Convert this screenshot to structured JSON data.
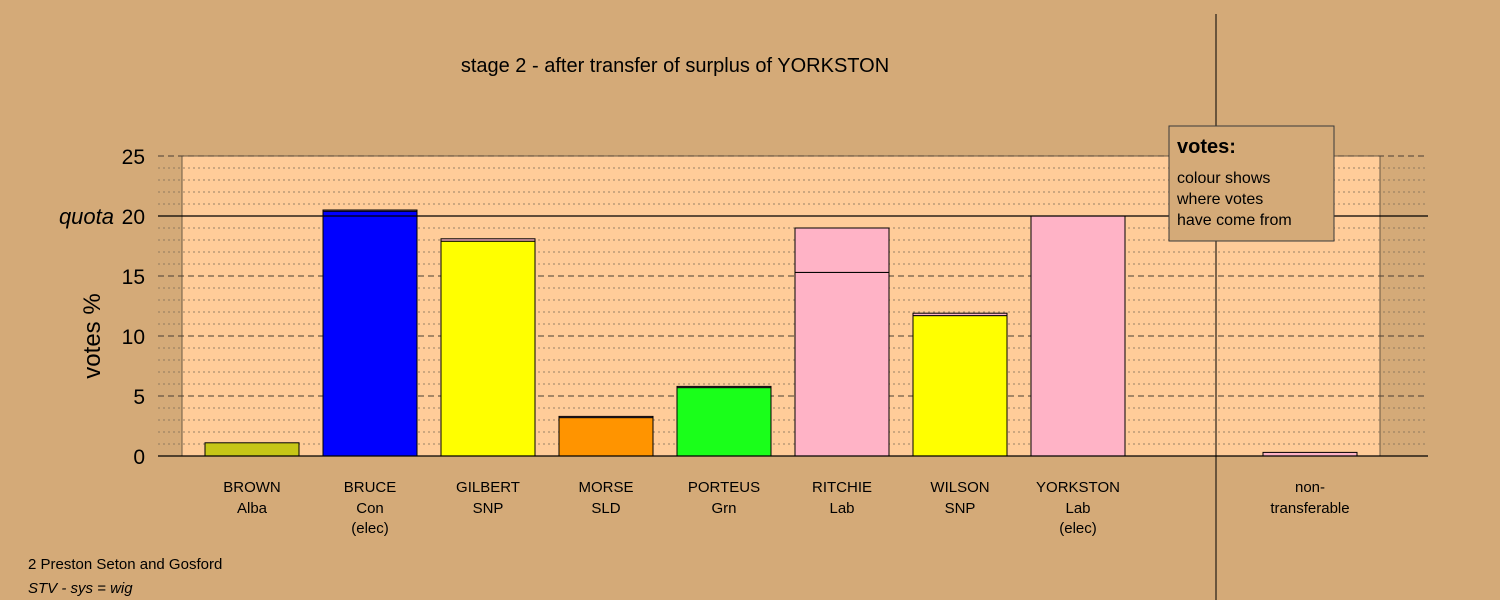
{
  "chart_data": {
    "type": "bar",
    "title": "stage 2 - after transfer of surplus of YORKSTON",
    "ylabel": "votes %",
    "ylim": [
      0,
      25
    ],
    "yticks": [
      0,
      5,
      10,
      15,
      20,
      25
    ],
    "quota": {
      "value": 20,
      "label": "quota"
    },
    "grid": true,
    "categories": [
      {
        "name": "BROWN",
        "party": "Alba",
        "note": ""
      },
      {
        "name": "BRUCE",
        "party": "Con",
        "note": "(elec)"
      },
      {
        "name": "GILBERT",
        "party": "SNP",
        "note": ""
      },
      {
        "name": "MORSE",
        "party": "SLD",
        "note": ""
      },
      {
        "name": "PORTEUS",
        "party": "Grn",
        "note": ""
      },
      {
        "name": "RITCHIE",
        "party": "Lab",
        "note": ""
      },
      {
        "name": "WILSON",
        "party": "SNP",
        "note": ""
      },
      {
        "name": "YORKSTON",
        "party": "Lab",
        "note": "(elec)"
      }
    ],
    "bars": [
      {
        "segments": [
          {
            "value": 1.1,
            "color": "#c6c617"
          }
        ]
      },
      {
        "segments": [
          {
            "value": 20.4,
            "color": "#0000ff"
          },
          {
            "value": 0.1,
            "color": "#ffb3c6"
          }
        ]
      },
      {
        "segments": [
          {
            "value": 17.9,
            "color": "#ffff00"
          },
          {
            "value": 0.2,
            "color": "#ffb3c6"
          }
        ]
      },
      {
        "segments": [
          {
            "value": 3.2,
            "color": "#ff9400"
          },
          {
            "value": 0.1,
            "color": "#ffb3c6"
          }
        ]
      },
      {
        "segments": [
          {
            "value": 5.7,
            "color": "#1aff1a"
          },
          {
            "value": 0.1,
            "color": "#ffb3c6"
          }
        ]
      },
      {
        "segments": [
          {
            "value": 15.3,
            "color": "#ffb3c6"
          },
          {
            "value": 3.7,
            "color": "#ffb3c6"
          }
        ]
      },
      {
        "segments": [
          {
            "value": 11.7,
            "color": "#ffff00"
          },
          {
            "value": 0.2,
            "color": "#ffb3c6"
          }
        ]
      },
      {
        "segments": [
          {
            "value": 20.0,
            "color": "#ffb3c6"
          }
        ]
      }
    ],
    "nontransferable": {
      "label_1": "non-",
      "label_2": "transferable",
      "value": 0.3,
      "color": "#ffb3c6"
    },
    "legend": {
      "placement": "top-right",
      "title": "votes:",
      "lines": [
        "colour shows",
        "where votes",
        "have come from"
      ]
    }
  },
  "footer": {
    "line1": "2 Preston Seton and Gosford",
    "line2": "STV - sys = wig"
  },
  "colors": {
    "background": "#d4aa78",
    "plot_background": "#ffcc99"
  }
}
